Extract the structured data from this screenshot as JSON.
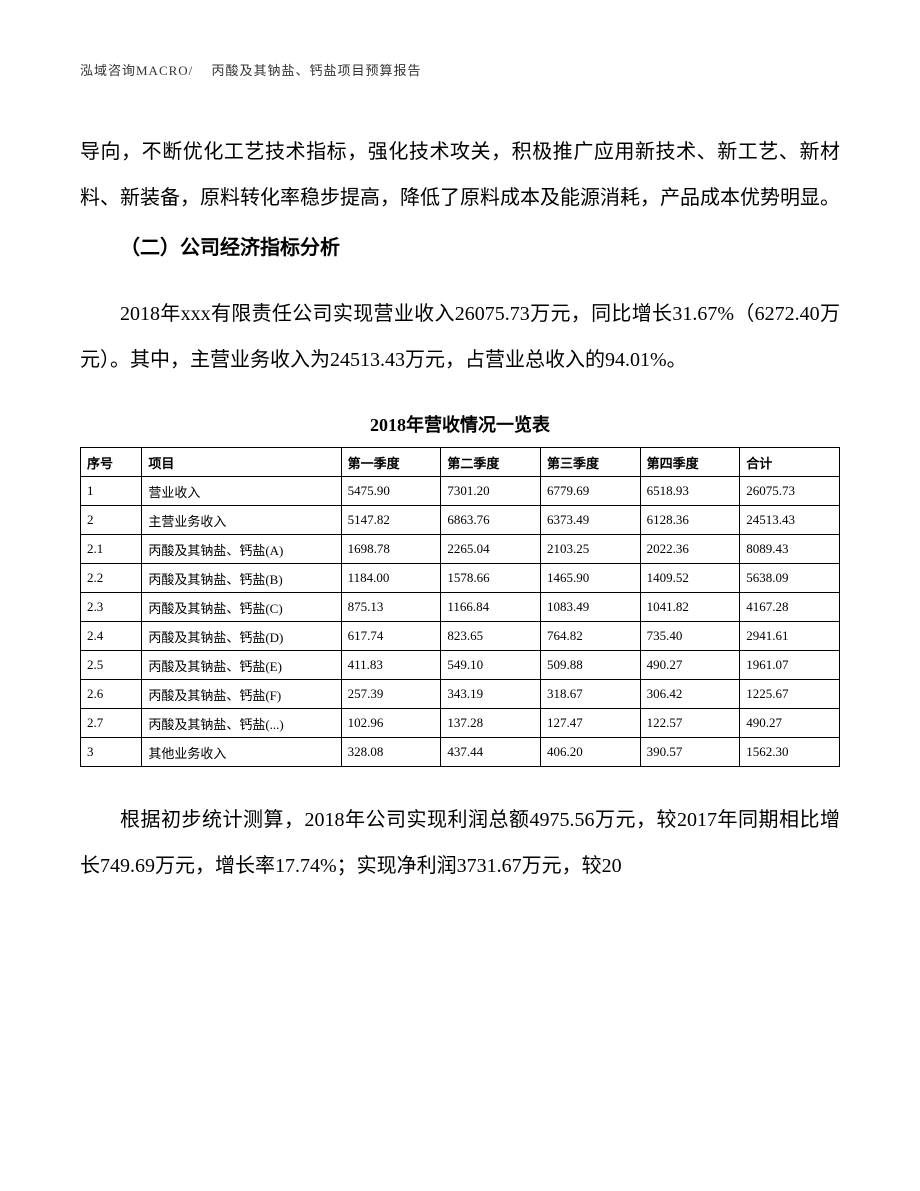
{
  "header": "泓域咨询MACRO/　 丙酸及其钠盐、钙盐项目预算报告",
  "para1": "导向，不断优化工艺技术指标，强化技术攻关，积极推广应用新技术、新工艺、新材料、新装备，原料转化率稳步提高，降低了原料成本及能源消耗，产品成本优势明显。",
  "heading": "（二）公司经济指标分析",
  "para2": "2018年xxx有限责任公司实现营业收入26075.73万元，同比增长31.67%（6272.40万元）。其中，主营业务收入为24513.43万元，占营业总收入的94.01%。",
  "tableTitle": "2018年营收情况一览表",
  "table": {
    "columns": [
      "序号",
      "项目",
      "第一季度",
      "第二季度",
      "第三季度",
      "第四季度",
      "合计"
    ],
    "rows": [
      [
        "1",
        "营业收入",
        "5475.90",
        "7301.20",
        "6779.69",
        "6518.93",
        "26075.73"
      ],
      [
        "2",
        "主营业务收入",
        "5147.82",
        "6863.76",
        "6373.49",
        "6128.36",
        "24513.43"
      ],
      [
        "2.1",
        "丙酸及其钠盐、钙盐(A)",
        "1698.78",
        "2265.04",
        "2103.25",
        "2022.36",
        "8089.43"
      ],
      [
        "2.2",
        "丙酸及其钠盐、钙盐(B)",
        "1184.00",
        "1578.66",
        "1465.90",
        "1409.52",
        "5638.09"
      ],
      [
        "2.3",
        "丙酸及其钠盐、钙盐(C)",
        "875.13",
        "1166.84",
        "1083.49",
        "1041.82",
        "4167.28"
      ],
      [
        "2.4",
        "丙酸及其钠盐、钙盐(D)",
        "617.74",
        "823.65",
        "764.82",
        "735.40",
        "2941.61"
      ],
      [
        "2.5",
        "丙酸及其钠盐、钙盐(E)",
        "411.83",
        "549.10",
        "509.88",
        "490.27",
        "1961.07"
      ],
      [
        "2.6",
        "丙酸及其钠盐、钙盐(F)",
        "257.39",
        "343.19",
        "318.67",
        "306.42",
        "1225.67"
      ],
      [
        "2.7",
        "丙酸及其钠盐、钙盐(...)",
        "102.96",
        "137.28",
        "127.47",
        "122.57",
        "490.27"
      ],
      [
        "3",
        "其他业务收入",
        "328.08",
        "437.44",
        "406.20",
        "390.57",
        "1562.30"
      ]
    ]
  },
  "para3": "根据初步统计测算，2018年公司实现利润总额4975.56万元，较2017年同期相比增长749.69万元，增长率17.74%；实现净利润3731.67万元，较20"
}
